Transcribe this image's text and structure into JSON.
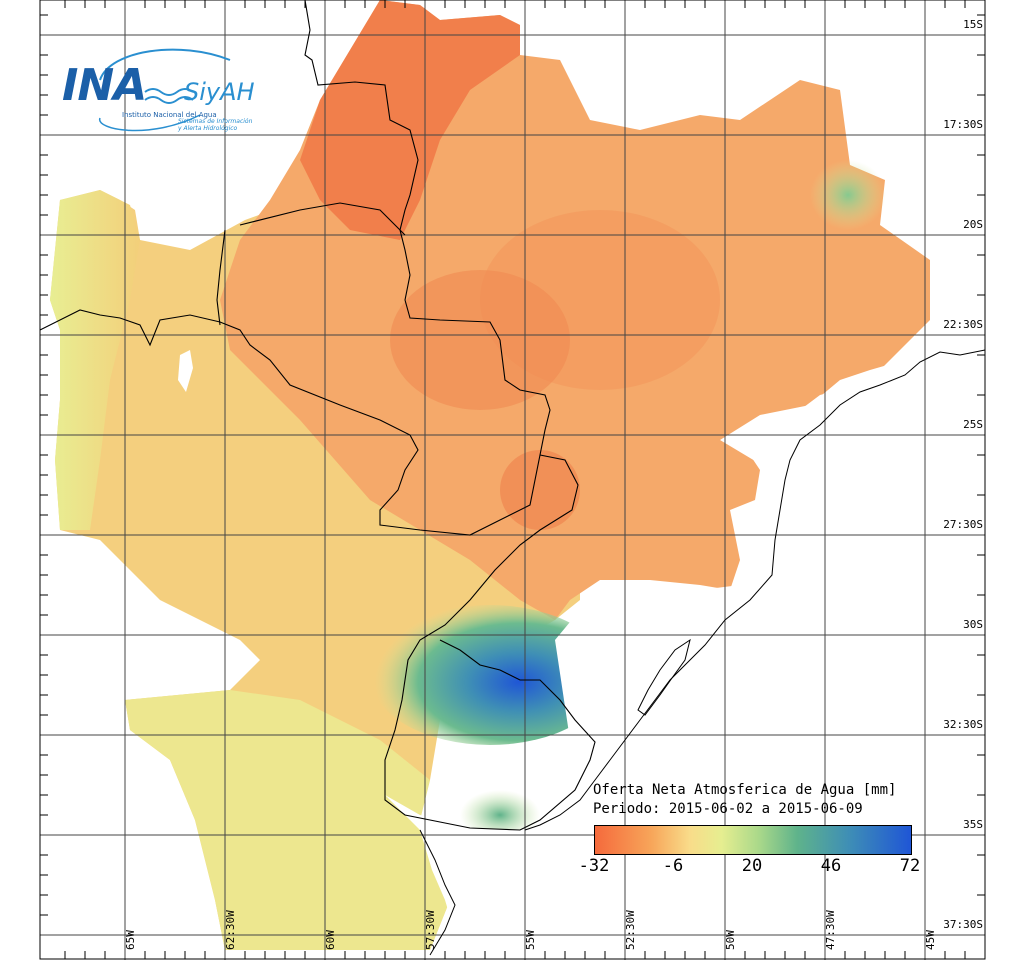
{
  "logo": {
    "main": "INA",
    "secondary": "SiyAH",
    "institution": "Instituto Nacional del Agua",
    "system_line1": "Sistemas de Información",
    "system_line2": "y Alerta Hidrológico"
  },
  "latitude_labels": [
    "15S",
    "17:30S",
    "20S",
    "22:30S",
    "25S",
    "27:30S",
    "30S",
    "32:30S",
    "35S",
    "37:30S"
  ],
  "longitude_labels": [
    "65W",
    "62:30W",
    "60W",
    "57:30W",
    "55W",
    "52:30W",
    "50W",
    "47:30W",
    "45W"
  ],
  "legend": {
    "title": "Oferta Neta Atmosferica de Agua [mm]",
    "period": "Periodo: 2015-06-02 a 2015-06-09",
    "ticks": [
      "-32",
      "-6",
      "20",
      "46",
      "72"
    ],
    "colors": [
      "#f56a3c",
      "#f7a65a",
      "#f9dc8a",
      "#e6ee90",
      "#a9d88a",
      "#5fb38b",
      "#3f8fb5",
      "#1f56d6"
    ]
  }
}
